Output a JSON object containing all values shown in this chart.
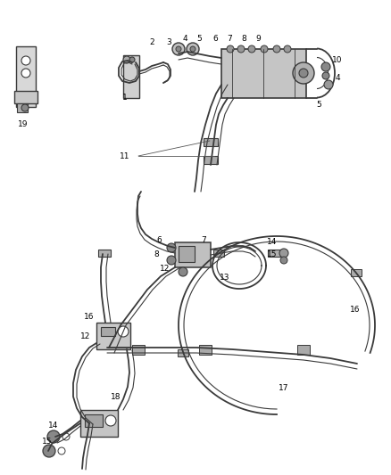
{
  "background_color": "#ffffff",
  "line_color": "#3a3a3a",
  "fig_width": 4.38,
  "fig_height": 5.33,
  "dpi": 100
}
